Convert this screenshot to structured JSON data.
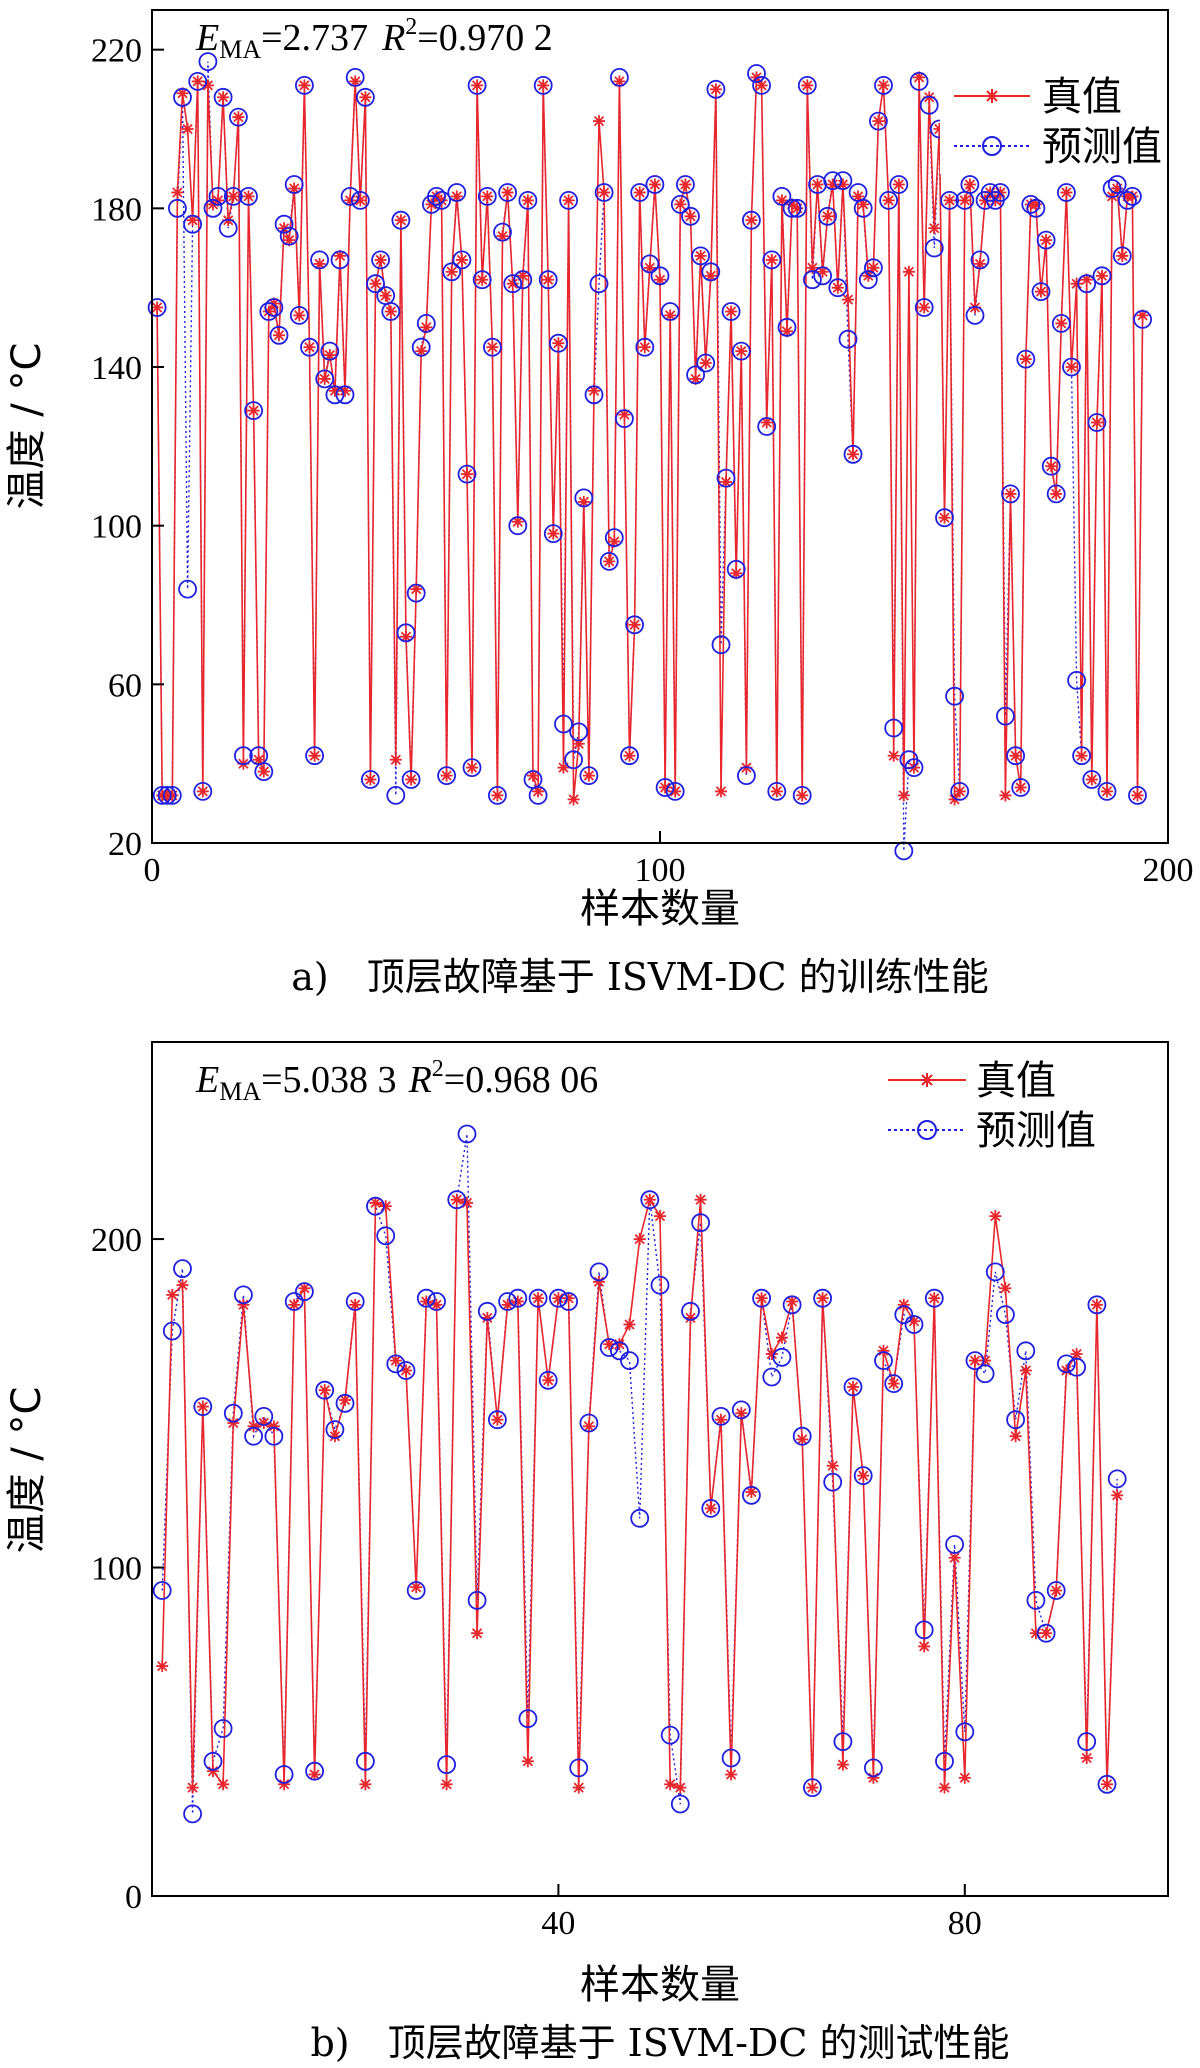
{
  "chart_data": [
    {
      "type": "line",
      "caption": "a)　顶层故障基于 ISVM-DC 的训练性能",
      "metric_ema_symbol": "E",
      "metric_ema_sub": "MA",
      "metric_ema_value": "=2.737",
      "metric_r2_symbol": "R",
      "metric_r2_sup": "2",
      "metric_r2_value": "=0.970 2",
      "xlabel": "样本数量",
      "ylabel": "温度 / °C",
      "xlim": [
        0,
        200
      ],
      "ylim": [
        20,
        230
      ],
      "xticks": [
        0,
        100,
        200
      ],
      "yticks": [
        20,
        60,
        100,
        140,
        180,
        220
      ],
      "legend": "top-right",
      "colors": {
        "true": "#e8262c",
        "pred": "#1f1fe0"
      },
      "series": [
        {
          "name": "真值",
          "values": [
            155,
            32,
            32,
            32,
            184,
            209,
            200,
            177,
            212,
            33,
            211,
            181,
            182,
            208,
            177,
            183,
            203,
            40,
            183,
            129,
            41,
            38,
            154,
            156,
            148,
            175,
            172,
            185,
            153,
            211,
            145,
            42,
            166,
            137,
            143,
            134,
            168,
            134,
            182,
            212,
            182,
            208,
            36,
            161,
            167,
            158,
            154,
            41,
            177,
            72,
            36,
            84,
            144,
            150,
            181,
            183,
            182,
            37,
            164,
            183,
            167,
            113,
            39,
            211,
            162,
            183,
            145,
            32,
            173,
            184,
            161,
            101,
            163,
            182,
            37,
            33,
            211,
            162,
            98,
            146,
            39,
            182,
            31,
            45,
            106,
            37,
            134,
            202,
            184,
            91,
            96,
            212,
            128,
            42,
            75,
            184,
            145,
            165,
            186,
            162,
            34,
            153,
            33,
            181,
            186,
            178,
            137,
            168,
            141,
            163,
            210,
            33,
            111,
            154,
            88,
            144,
            39,
            177,
            213,
            211,
            126,
            167,
            33,
            182,
            149,
            181,
            180,
            32,
            211,
            165,
            186,
            164,
            178,
            186,
            160,
            186,
            157,
            118,
            183,
            181,
            163,
            165,
            202,
            211,
            182,
            42,
            186,
            32,
            164,
            39,
            213,
            155,
            208,
            175,
            200,
            102,
            182,
            31,
            33,
            182,
            186,
            155,
            166,
            182,
            184,
            182,
            184,
            32,
            108,
            42,
            34,
            142,
            181,
            181,
            159,
            172,
            115,
            108,
            151,
            184,
            140,
            161,
            42,
            162,
            36,
            126,
            163,
            33,
            183,
            185,
            168,
            183,
            183,
            32,
            153
          ]
        },
        {
          "name": "预测值",
          "values": [
            155,
            32,
            32,
            32,
            180,
            208,
            84,
            176,
            212,
            33,
            217,
            180,
            183,
            208,
            175,
            183,
            203,
            42,
            183,
            129,
            42,
            38,
            154,
            155,
            148,
            176,
            173,
            186,
            153,
            211,
            145,
            42,
            167,
            137,
            144,
            133,
            167,
            133,
            183,
            213,
            182,
            208,
            36,
            161,
            167,
            158,
            154,
            32,
            177,
            73,
            36,
            83,
            145,
            151,
            181,
            183,
            182,
            37,
            164,
            184,
            167,
            113,
            39,
            211,
            162,
            183,
            145,
            32,
            174,
            184,
            161,
            100,
            162,
            182,
            36,
            32,
            211,
            162,
            98,
            146,
            50,
            182,
            41,
            48,
            107,
            37,
            133,
            161,
            184,
            91,
            97,
            213,
            127,
            42,
            75,
            184,
            145,
            166,
            186,
            163,
            34,
            154,
            33,
            181,
            186,
            178,
            138,
            168,
            141,
            164,
            210,
            70,
            112,
            154,
            89,
            144,
            37,
            177,
            214,
            211,
            125,
            167,
            33,
            183,
            150,
            180,
            180,
            32,
            211,
            162,
            186,
            163,
            178,
            187,
            160,
            187,
            147,
            118,
            184,
            180,
            162,
            165,
            202,
            211,
            182,
            49,
            186,
            18,
            41,
            39,
            212,
            155,
            206,
            170,
            200,
            102,
            182,
            57,
            33,
            182,
            186,
            153,
            167,
            182,
            184,
            182,
            184,
            52,
            108,
            42,
            34,
            142,
            181,
            180,
            159,
            172,
            115,
            108,
            151,
            184,
            140,
            61,
            42,
            161,
            36,
            126,
            163,
            33,
            185,
            186,
            168,
            182,
            183,
            32,
            152
          ]
        }
      ]
    },
    {
      "type": "line",
      "caption": "b)　顶层故障基于 ISVM-DC 的测试性能",
      "metric_ema_symbol": "E",
      "metric_ema_sub": "MA",
      "metric_ema_value": "=5.038 3",
      "metric_r2_symbol": "R",
      "metric_r2_sup": "2",
      "metric_r2_value": "=0.968 06",
      "xlabel": "样本数量",
      "ylabel": "温度 / °C",
      "xlim": [
        0,
        100
      ],
      "ylim": [
        0,
        260
      ],
      "xticks": [
        40,
        80
      ],
      "yticks": [
        0,
        100,
        200
      ],
      "legend": "top-right",
      "colors": {
        "true": "#e8262c",
        "pred": "#1f1fe0"
      },
      "series": [
        {
          "name": "真值",
          "values": [
            70,
            183,
            186,
            33,
            149,
            38,
            34,
            144,
            180,
            143,
            144,
            143,
            34,
            180,
            185,
            37,
            154,
            140,
            151,
            180,
            34,
            211,
            210,
            163,
            160,
            94,
            181,
            180,
            34,
            212,
            211,
            80,
            176,
            145,
            180,
            181,
            41,
            182,
            157,
            182,
            182,
            33,
            143,
            187,
            168,
            168,
            174,
            200,
            212,
            207,
            34,
            33,
            176,
            212,
            118,
            145,
            37,
            147,
            123,
            182,
            165,
            170,
            181,
            139,
            33,
            182,
            131,
            40,
            155,
            128,
            36,
            166,
            156,
            180,
            175,
            76,
            182,
            33,
            103,
            36,
            163,
            163,
            207,
            185,
            140,
            160,
            80,
            80,
            93,
            160,
            165,
            42,
            180,
            34,
            122
          ]
        },
        {
          "name": "预测值",
          "values": [
            93,
            172,
            191,
            25,
            149,
            41,
            51,
            147,
            183,
            140,
            146,
            140,
            37,
            181,
            184,
            38,
            154,
            142,
            150,
            181,
            41,
            210,
            201,
            162,
            160,
            93,
            182,
            181,
            40,
            212,
            232,
            90,
            178,
            145,
            181,
            182,
            54,
            182,
            157,
            182,
            181,
            39,
            144,
            190,
            167,
            166,
            163,
            115,
            212,
            186,
            49,
            28,
            178,
            205,
            118,
            146,
            42,
            148,
            122,
            182,
            158,
            164,
            180,
            140,
            33,
            182,
            126,
            47,
            155,
            128,
            39,
            163,
            156,
            177,
            174,
            81,
            182,
            41,
            107,
            50,
            163,
            159,
            190,
            177,
            145,
            166,
            90,
            80,
            93,
            162,
            161,
            47,
            180,
            34,
            127
          ]
        }
      ]
    }
  ]
}
